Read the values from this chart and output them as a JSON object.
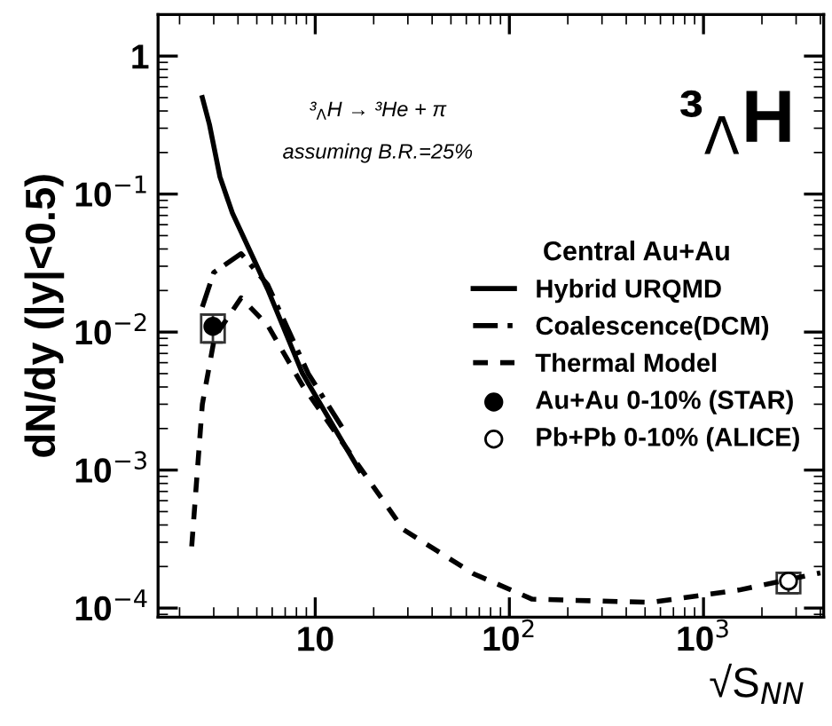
{
  "chart_data": {
    "type": "line",
    "xlabel": "√S$_{NN}$",
    "ylabel": "dN/dy (|y|<0.5)",
    "legend_title": "Central Au+Au",
    "legend": "right",
    "log": "xy",
    "grid": false,
    "xlim": [
      1.55,
      4160
    ],
    "ylim": [
      8.6e-05,
      2
    ],
    "xticks": [
      {
        "value": 10,
        "label": "10"
      },
      {
        "value": 100,
        "label": "10$^{2}$"
      },
      {
        "value": 1000,
        "label": "10$^{3}$"
      }
    ],
    "yticks": [
      {
        "value": 0.0001,
        "label": "10$^{−4}$"
      },
      {
        "value": 0.001,
        "label": "10$^{−3}$"
      },
      {
        "value": 0.01,
        "label": "10$^{−2}$"
      },
      {
        "value": 0.1,
        "label": "10$^{−1}$"
      },
      {
        "value": 1,
        "label": "1"
      }
    ],
    "annotations": [
      "³$_{Λ}$H → ³He + π",
      "assuming B.R.=25%",
      "³$_{Λ}$H"
    ],
    "series": [
      {
        "name": "Hybrid URQMD",
        "line_style": "solid",
        "color": "#000000",
        "x": [
          2.62,
          2.85,
          3.23,
          3.74,
          5.69,
          8.6,
          16.9
        ],
        "values": [
          0.5,
          0.32,
          0.133,
          0.073,
          0.0204,
          0.005,
          0.00099
        ]
      },
      {
        "name": "Coalescence(DCM)",
        "line_style": "dashdot",
        "color": "#000000",
        "x": [
          2.62,
          3.0,
          4.15,
          5.69,
          9.2,
          14.0
        ],
        "values": [
          0.0152,
          0.027,
          0.037,
          0.022,
          0.005,
          0.00196
        ]
      },
      {
        "name": "Thermal Model",
        "line_style": "dashed",
        "color": "#000000",
        "x": [
          2.31,
          2.62,
          3.03,
          4.15,
          5.69,
          8.6,
          16.2,
          28.5,
          65,
          131,
          533,
          1520,
          4000
        ],
        "values": [
          0.00028,
          0.003,
          0.0092,
          0.0177,
          0.0112,
          0.0041,
          0.00115,
          0.00037,
          0.000178,
          0.000116,
          0.00011,
          0.000135,
          0.00018
        ]
      },
      {
        "name": "Au+Au 0-10% (STAR)",
        "type": "scatter",
        "marker": "circle",
        "color": "#000000",
        "x": [
          2.97
        ],
        "values": [
          0.011
        ],
        "errors": [
          [
            0.0084,
            0.0134
          ]
        ]
      },
      {
        "name": "Pb+Pb 0-10% (ALICE)",
        "type": "scatter",
        "marker": "circle",
        "color": "#ffffff",
        "x": [
          2740
        ],
        "values": [
          0.000157
        ],
        "errors": [
          [
            0.000128,
            0.00018
          ]
        ]
      }
    ]
  }
}
